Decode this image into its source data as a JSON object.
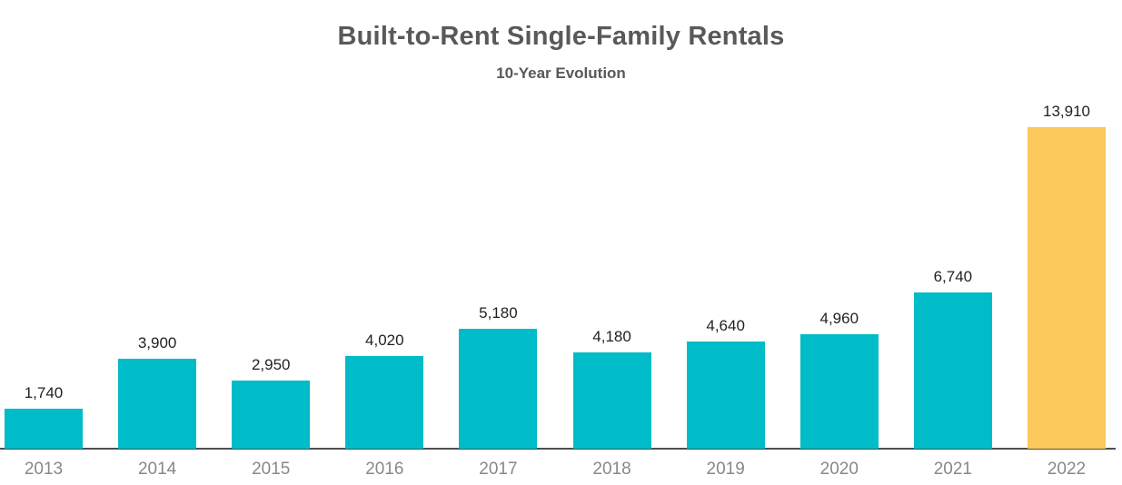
{
  "chart_data": {
    "type": "bar",
    "title": "Built-to-Rent Single-Family Rentals",
    "subtitle": "10-Year Evolution",
    "categories": [
      "2013",
      "2014",
      "2015",
      "2016",
      "2017",
      "2018",
      "2019",
      "2020",
      "2021",
      "2022"
    ],
    "values": [
      1740,
      3900,
      2950,
      4020,
      5180,
      4180,
      4640,
      4960,
      6740,
      13910
    ],
    "value_labels": [
      "1,740",
      "3,900",
      "2,950",
      "4,020",
      "5,180",
      "4,180",
      "4,640",
      "4,960",
      "6,740",
      "13,910"
    ],
    "xlabel": "",
    "ylabel": "",
    "ylim": [
      0,
      13910
    ],
    "grid": false,
    "legend": "none",
    "bar_color": "#00BCC8",
    "highlight_color": "#FAC85B",
    "highlight_category": "2022",
    "axis_line_color": "#4D4D4F",
    "title_color": "#58595B",
    "subtitle_color": "#58595B",
    "value_label_color": "#231F20",
    "category_label_color": "#86888B"
  }
}
